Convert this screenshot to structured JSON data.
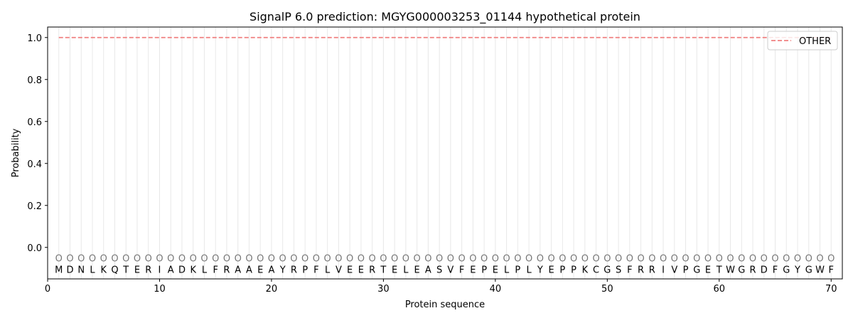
{
  "chart_data": {
    "type": "line",
    "title": "SignalP 6.0 prediction: MGYG000003253_01144 hypothetical protein",
    "xlabel": "Protein sequence",
    "ylabel": "Probability",
    "xlim": [
      0,
      71
    ],
    "ylim": [
      -0.15,
      1.05
    ],
    "xticks": [
      0,
      10,
      20,
      30,
      40,
      50,
      60,
      70
    ],
    "yticks": [
      0.0,
      0.2,
      0.4,
      0.6,
      0.8,
      1.0
    ],
    "ytick_labels": [
      "0.0",
      "0.2",
      "0.4",
      "0.6",
      "0.8",
      "1.0"
    ],
    "grid": "vertical lines at each residue",
    "legend_position": "top-right",
    "sequence": [
      "M",
      "D",
      "N",
      "L",
      "K",
      "Q",
      "T",
      "E",
      "R",
      "I",
      "A",
      "D",
      "K",
      "L",
      "F",
      "R",
      "A",
      "A",
      "E",
      "A",
      "Y",
      "R",
      "P",
      "F",
      "L",
      "V",
      "E",
      "E",
      "R",
      "T",
      "E",
      "L",
      "E",
      "A",
      "S",
      "V",
      "F",
      "E",
      "P",
      "E",
      "L",
      "P",
      "L",
      "Y",
      "E",
      "P",
      "P",
      "K",
      "C",
      "G",
      "S",
      "F",
      "R",
      "R",
      "I",
      "V",
      "P",
      "G",
      "E",
      "T",
      "W",
      "G",
      "R",
      "D",
      "F",
      "G",
      "Y",
      "G",
      "W",
      "F"
    ],
    "label_marker": "O",
    "series": [
      {
        "name": "OTHER",
        "color": "#f08080",
        "style": "dashed",
        "x_start": 1,
        "x_end": 70,
        "value": 1.0
      }
    ]
  }
}
